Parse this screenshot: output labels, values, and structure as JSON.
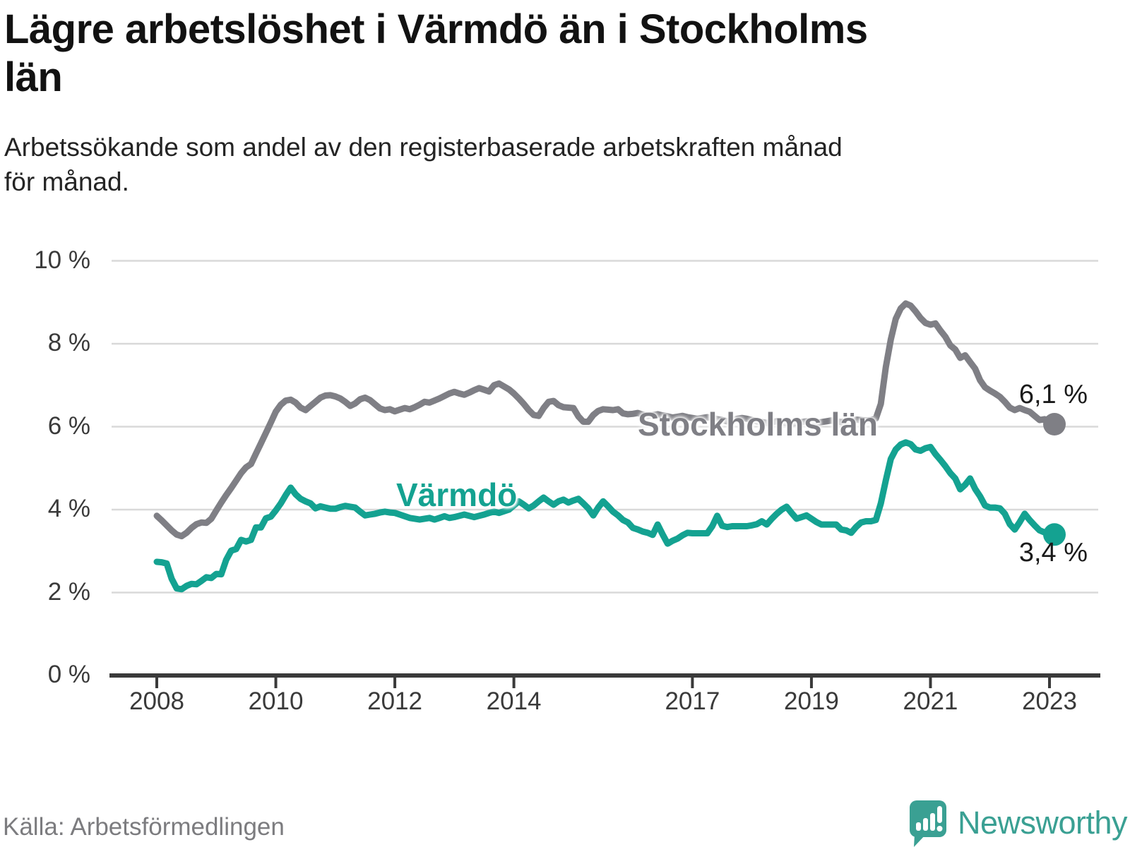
{
  "header": {
    "title_line1": "Lägre arbetslöshet i Värmdö än i Stockholms",
    "title_line2": "län",
    "subtitle_line1": "Arbetssökande som andel av den registerbaserade arbetskraften månad",
    "subtitle_line2": "för månad."
  },
  "footer": {
    "source": "Källa: Arbetsförmedlingen",
    "brand_name": "Newsworthy",
    "brand_color": "#3AA093"
  },
  "chart_data": {
    "type": "line",
    "title": "Lägre arbetslöshet i Värmdö än i Stockholms län",
    "subtitle": "Arbetssökande som andel av den registerbaserade arbetskraften månad för månad.",
    "x_unit": "month",
    "x_start_year": 2008,
    "points_per_year": 12,
    "x_ticks": [
      2008,
      2010,
      2012,
      2014,
      2017,
      2019,
      2021,
      2023
    ],
    "x_tick_labels": [
      "2008",
      "2010",
      "2012",
      "2014",
      "2017",
      "2019",
      "2021",
      "2023"
    ],
    "y_ticks": [
      0,
      2,
      4,
      6,
      8,
      10
    ],
    "y_tick_labels": [
      "0 %",
      "2 %",
      "4 %",
      "6 %",
      "8 %",
      "10 %"
    ],
    "ylim": [
      0,
      10.5
    ],
    "grid": "horizontal",
    "grid_color": "#D9D9D9",
    "axis_color": "#3A3A3A",
    "legend_position": "inline-labels",
    "series": [
      {
        "name": "Stockholms län",
        "color": "#7F7F85",
        "end_label": "6,1 %",
        "end_value": 6.1,
        "values": [
          3.85,
          3.74,
          3.62,
          3.5,
          3.4,
          3.36,
          3.44,
          3.56,
          3.65,
          3.69,
          3.68,
          3.78,
          3.98,
          4.17,
          4.35,
          4.52,
          4.7,
          4.88,
          5.02,
          5.1,
          5.35,
          5.6,
          5.85,
          6.1,
          6.36,
          6.53,
          6.63,
          6.65,
          6.58,
          6.46,
          6.4,
          6.5,
          6.6,
          6.7,
          6.75,
          6.76,
          6.73,
          6.68,
          6.6,
          6.5,
          6.56,
          6.66,
          6.7,
          6.64,
          6.54,
          6.44,
          6.4,
          6.42,
          6.37,
          6.41,
          6.45,
          6.42,
          6.47,
          6.53,
          6.6,
          6.58,
          6.63,
          6.68,
          6.74,
          6.8,
          6.84,
          6.8,
          6.77,
          6.82,
          6.88,
          6.93,
          6.89,
          6.85,
          7.0,
          7.04,
          6.97,
          6.9,
          6.8,
          6.68,
          6.55,
          6.4,
          6.28,
          6.26,
          6.45,
          6.6,
          6.62,
          6.52,
          6.47,
          6.46,
          6.45,
          6.25,
          6.12,
          6.12,
          6.28,
          6.38,
          6.42,
          6.41,
          6.4,
          6.42,
          6.32,
          6.3,
          6.31,
          6.33,
          6.29,
          6.26,
          6.28,
          6.3,
          6.27,
          6.25,
          6.22,
          6.24,
          6.26,
          6.23,
          6.21,
          6.19,
          6.21,
          6.23,
          6.21,
          6.18,
          6.16,
          6.13,
          6.16,
          6.19,
          6.21,
          6.19,
          6.16,
          6.13,
          6.11,
          6.09,
          6.11,
          6.13,
          6.11,
          6.09,
          6.07,
          6.09,
          6.11,
          6.13,
          6.11,
          6.09,
          6.11,
          6.13,
          6.15,
          6.13,
          6.11,
          6.13,
          6.15,
          6.17,
          6.16,
          6.15,
          6.16,
          6.2,
          6.55,
          7.44,
          8.1,
          8.6,
          8.85,
          8.97,
          8.92,
          8.78,
          8.62,
          8.5,
          8.46,
          8.49,
          8.32,
          8.17,
          7.96,
          7.86,
          7.66,
          7.72,
          7.56,
          7.4,
          7.12,
          6.95,
          6.87,
          6.8,
          6.72,
          6.6,
          6.46,
          6.4,
          6.45,
          6.4,
          6.36,
          6.26,
          6.16,
          6.18,
          6.12,
          6.06
        ]
      },
      {
        "name": "Värmdö",
        "color": "#14A291",
        "end_label": "3,4 %",
        "end_value": 3.4,
        "values": [
          2.74,
          2.73,
          2.7,
          2.33,
          2.1,
          2.08,
          2.16,
          2.21,
          2.2,
          2.28,
          2.37,
          2.35,
          2.45,
          2.44,
          2.79,
          3.01,
          3.05,
          3.27,
          3.23,
          3.27,
          3.57,
          3.57,
          3.79,
          3.83,
          3.98,
          4.15,
          4.35,
          4.53,
          4.37,
          4.26,
          4.2,
          4.15,
          4.03,
          4.08,
          4.05,
          4.02,
          4.02,
          4.06,
          4.09,
          4.07,
          4.05,
          3.95,
          3.86,
          3.88,
          3.9,
          3.93,
          3.95,
          3.93,
          3.92,
          3.88,
          3.84,
          3.8,
          3.78,
          3.76,
          3.78,
          3.8,
          3.76,
          3.8,
          3.84,
          3.8,
          3.82,
          3.85,
          3.88,
          3.85,
          3.82,
          3.85,
          3.88,
          3.92,
          3.95,
          3.92,
          3.96,
          4.0,
          4.1,
          4.2,
          4.12,
          4.03,
          4.1,
          4.2,
          4.29,
          4.2,
          4.12,
          4.2,
          4.24,
          4.17,
          4.22,
          4.26,
          4.15,
          4.03,
          3.86,
          4.05,
          4.2,
          4.08,
          3.95,
          3.86,
          3.75,
          3.69,
          3.56,
          3.52,
          3.47,
          3.44,
          3.39,
          3.64,
          3.4,
          3.18,
          3.25,
          3.3,
          3.38,
          3.44,
          3.43,
          3.43,
          3.43,
          3.43,
          3.6,
          3.85,
          3.61,
          3.58,
          3.6,
          3.6,
          3.6,
          3.6,
          3.62,
          3.65,
          3.72,
          3.64,
          3.78,
          3.9,
          4.0,
          4.07,
          3.92,
          3.78,
          3.82,
          3.86,
          3.78,
          3.7,
          3.64,
          3.64,
          3.64,
          3.64,
          3.52,
          3.5,
          3.44,
          3.58,
          3.69,
          3.72,
          3.72,
          3.75,
          4.15,
          4.71,
          5.22,
          5.45,
          5.57,
          5.62,
          5.58,
          5.45,
          5.42,
          5.48,
          5.51,
          5.34,
          5.2,
          5.05,
          4.88,
          4.75,
          4.49,
          4.6,
          4.75,
          4.5,
          4.32,
          4.1,
          4.05,
          4.05,
          4.03,
          3.9,
          3.65,
          3.52,
          3.7,
          3.9,
          3.75,
          3.62,
          3.5,
          3.45,
          3.42,
          3.4
        ]
      }
    ]
  }
}
